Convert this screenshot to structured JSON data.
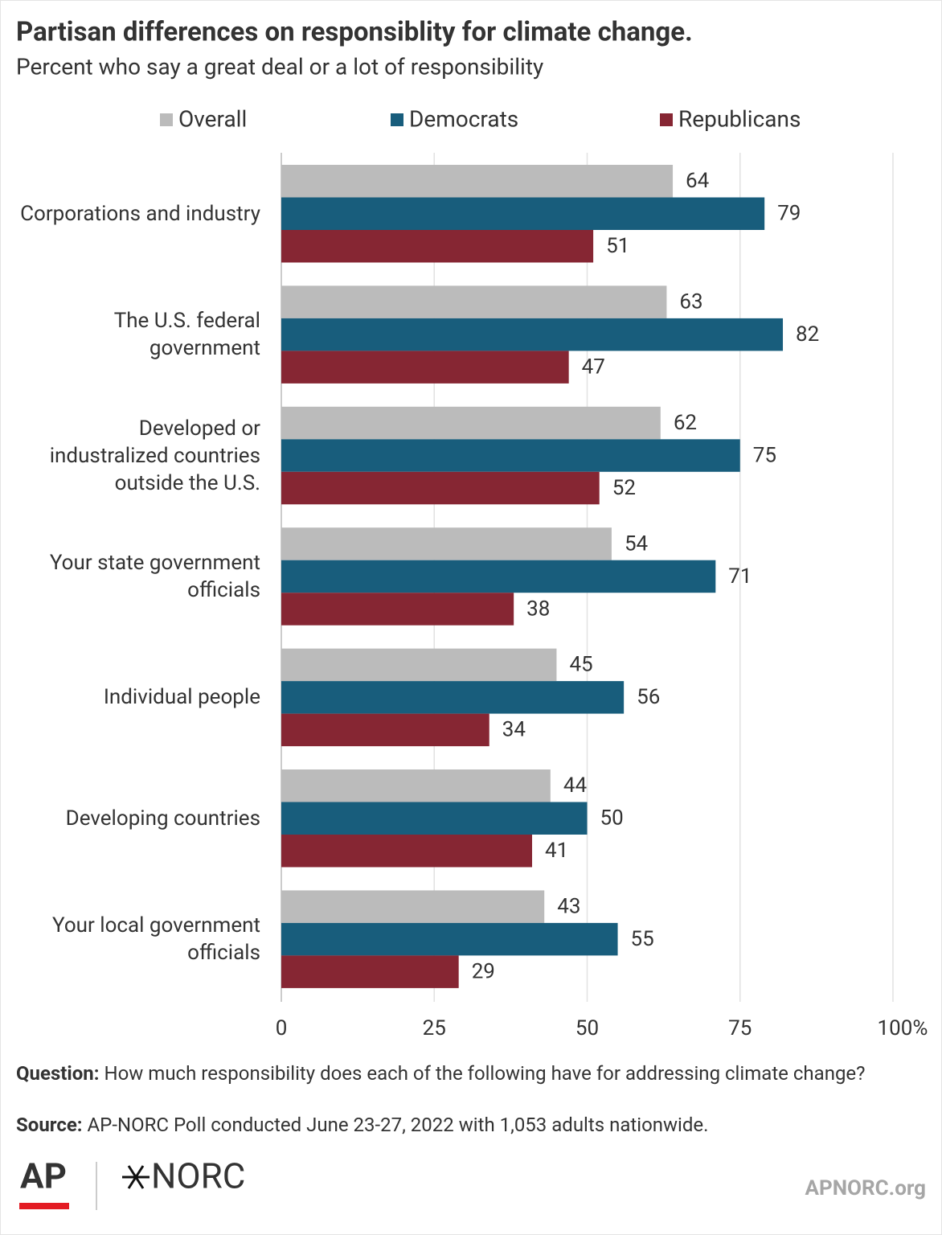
{
  "chart_data": {
    "type": "bar",
    "orientation": "horizontal",
    "title": "Partisan differences on responsiblity for climate change.",
    "subtitle": "Percent who say a great deal or a lot of responsibility",
    "categories": [
      "Corporations and industry",
      "The U.S. federal government",
      "Developed or industralized countries outside the U.S.",
      "Your state government officials",
      "Individual people",
      "Developing countries",
      "Your local government officials"
    ],
    "series": [
      {
        "name": "Overall",
        "color": "#bbbbbb",
        "values": [
          64,
          63,
          62,
          54,
          45,
          44,
          43
        ]
      },
      {
        "name": "Democrats",
        "color": "#185d7c",
        "values": [
          79,
          82,
          75,
          71,
          56,
          50,
          55
        ]
      },
      {
        "name": "Republicans",
        "color": "#862633",
        "values": [
          51,
          47,
          52,
          38,
          34,
          41,
          29
        ]
      }
    ],
    "xlim": [
      0,
      100
    ],
    "xticks": [
      0,
      25,
      50,
      75,
      {
        "value": 100,
        "label": "100%"
      }
    ],
    "grid": true,
    "legend": "top"
  },
  "footer": {
    "question_label": "Question:",
    "question": "How much responsibility does each of the following have for addressing climate change?",
    "source_label": "Source:",
    "source": "AP-NORC Poll conducted June 23-27, 2022 with 1,053 adults nationwide.",
    "logo_ap": "AP",
    "logo_norc": "NORC",
    "site": "APNORC.org"
  }
}
